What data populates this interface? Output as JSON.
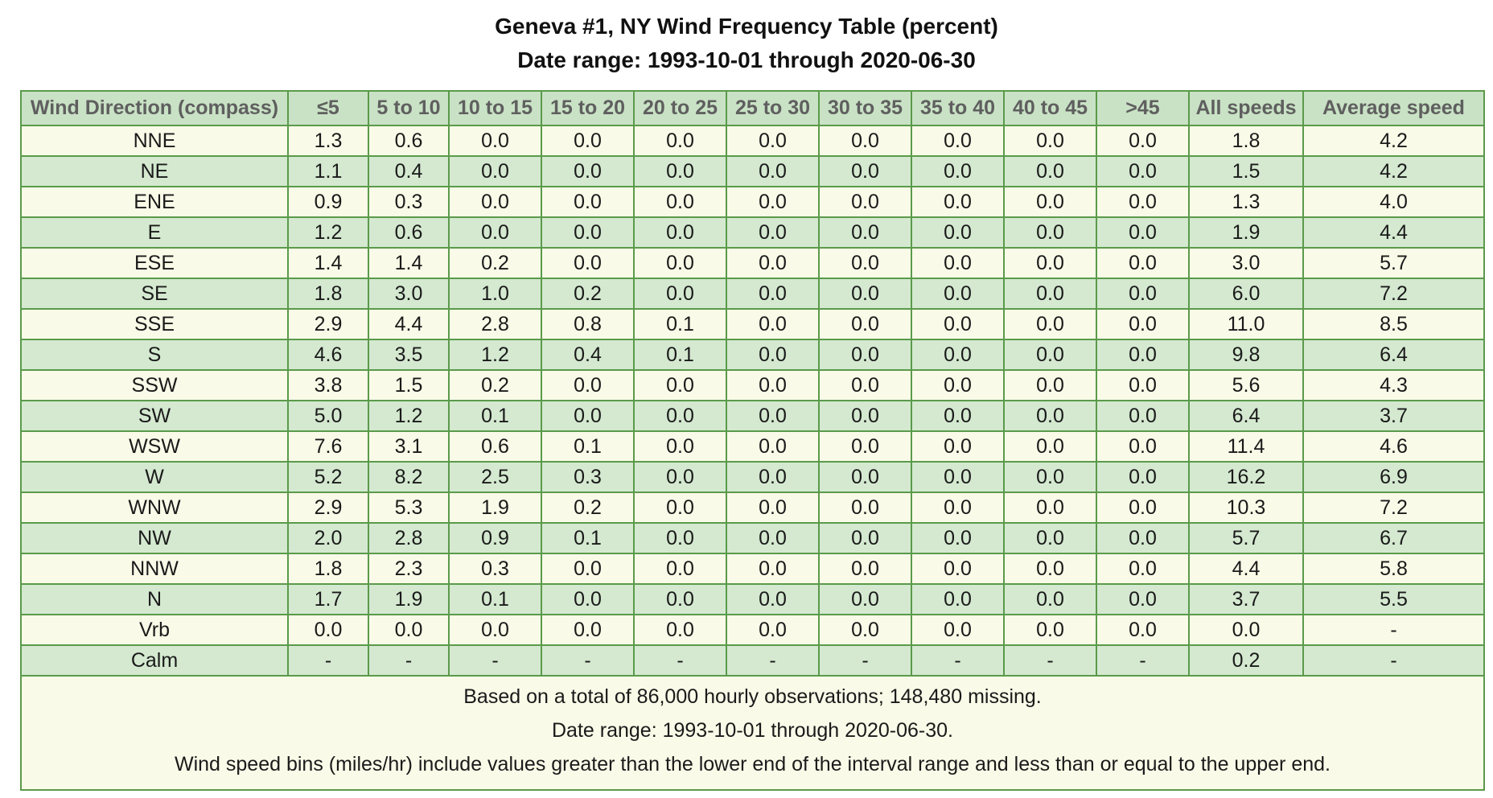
{
  "title": {
    "line1": "Geneva #1, NY Wind Frequency Table (percent)",
    "line2": "Date range: 1993-10-01 through 2020-06-30"
  },
  "table": {
    "columns": [
      "Wind Direction (compass)",
      "≤5",
      "5 to 10",
      "10 to 15",
      "15 to 20",
      "20 to 25",
      "25 to 30",
      "30 to 35",
      "35 to 40",
      "40 to 45",
      ">45",
      "All speeds",
      "Average speed"
    ],
    "rows": [
      [
        "NNE",
        "1.3",
        "0.6",
        "0.0",
        "0.0",
        "0.0",
        "0.0",
        "0.0",
        "0.0",
        "0.0",
        "0.0",
        "1.8",
        "4.2"
      ],
      [
        "NE",
        "1.1",
        "0.4",
        "0.0",
        "0.0",
        "0.0",
        "0.0",
        "0.0",
        "0.0",
        "0.0",
        "0.0",
        "1.5",
        "4.2"
      ],
      [
        "ENE",
        "0.9",
        "0.3",
        "0.0",
        "0.0",
        "0.0",
        "0.0",
        "0.0",
        "0.0",
        "0.0",
        "0.0",
        "1.3",
        "4.0"
      ],
      [
        "E",
        "1.2",
        "0.6",
        "0.0",
        "0.0",
        "0.0",
        "0.0",
        "0.0",
        "0.0",
        "0.0",
        "0.0",
        "1.9",
        "4.4"
      ],
      [
        "ESE",
        "1.4",
        "1.4",
        "0.2",
        "0.0",
        "0.0",
        "0.0",
        "0.0",
        "0.0",
        "0.0",
        "0.0",
        "3.0",
        "5.7"
      ],
      [
        "SE",
        "1.8",
        "3.0",
        "1.0",
        "0.2",
        "0.0",
        "0.0",
        "0.0",
        "0.0",
        "0.0",
        "0.0",
        "6.0",
        "7.2"
      ],
      [
        "SSE",
        "2.9",
        "4.4",
        "2.8",
        "0.8",
        "0.1",
        "0.0",
        "0.0",
        "0.0",
        "0.0",
        "0.0",
        "11.0",
        "8.5"
      ],
      [
        "S",
        "4.6",
        "3.5",
        "1.2",
        "0.4",
        "0.1",
        "0.0",
        "0.0",
        "0.0",
        "0.0",
        "0.0",
        "9.8",
        "6.4"
      ],
      [
        "SSW",
        "3.8",
        "1.5",
        "0.2",
        "0.0",
        "0.0",
        "0.0",
        "0.0",
        "0.0",
        "0.0",
        "0.0",
        "5.6",
        "4.3"
      ],
      [
        "SW",
        "5.0",
        "1.2",
        "0.1",
        "0.0",
        "0.0",
        "0.0",
        "0.0",
        "0.0",
        "0.0",
        "0.0",
        "6.4",
        "3.7"
      ],
      [
        "WSW",
        "7.6",
        "3.1",
        "0.6",
        "0.1",
        "0.0",
        "0.0",
        "0.0",
        "0.0",
        "0.0",
        "0.0",
        "11.4",
        "4.6"
      ],
      [
        "W",
        "5.2",
        "8.2",
        "2.5",
        "0.3",
        "0.0",
        "0.0",
        "0.0",
        "0.0",
        "0.0",
        "0.0",
        "16.2",
        "6.9"
      ],
      [
        "WNW",
        "2.9",
        "5.3",
        "1.9",
        "0.2",
        "0.0",
        "0.0",
        "0.0",
        "0.0",
        "0.0",
        "0.0",
        "10.3",
        "7.2"
      ],
      [
        "NW",
        "2.0",
        "2.8",
        "0.9",
        "0.1",
        "0.0",
        "0.0",
        "0.0",
        "0.0",
        "0.0",
        "0.0",
        "5.7",
        "6.7"
      ],
      [
        "NNW",
        "1.8",
        "2.3",
        "0.3",
        "0.0",
        "0.0",
        "0.0",
        "0.0",
        "0.0",
        "0.0",
        "0.0",
        "4.4",
        "5.8"
      ],
      [
        "N",
        "1.7",
        "1.9",
        "0.1",
        "0.0",
        "0.0",
        "0.0",
        "0.0",
        "0.0",
        "0.0",
        "0.0",
        "3.7",
        "5.5"
      ],
      [
        "Vrb",
        "0.0",
        "0.0",
        "0.0",
        "0.0",
        "0.0",
        "0.0",
        "0.0",
        "0.0",
        "0.0",
        "0.0",
        "0.0",
        "-"
      ],
      [
        "Calm",
        "-",
        "-",
        "-",
        "-",
        "-",
        "-",
        "-",
        "-",
        "-",
        "-",
        "0.2",
        "-"
      ]
    ],
    "footer": [
      "Based on a total of 86,000 hourly observations; 148,480 missing.",
      "Date range: 1993-10-01 through 2020-06-30.",
      "Wind speed bins (miles/hr) include values greater than the lower end of the interval range and less than or equal to the upper end."
    ]
  },
  "colors": {
    "header_bg": "#c9e2c5",
    "row_odd_bg": "#fafae8",
    "row_even_bg": "#d4e9d0",
    "border": "#5a9a4a",
    "header_text": "#5f5f5f"
  }
}
